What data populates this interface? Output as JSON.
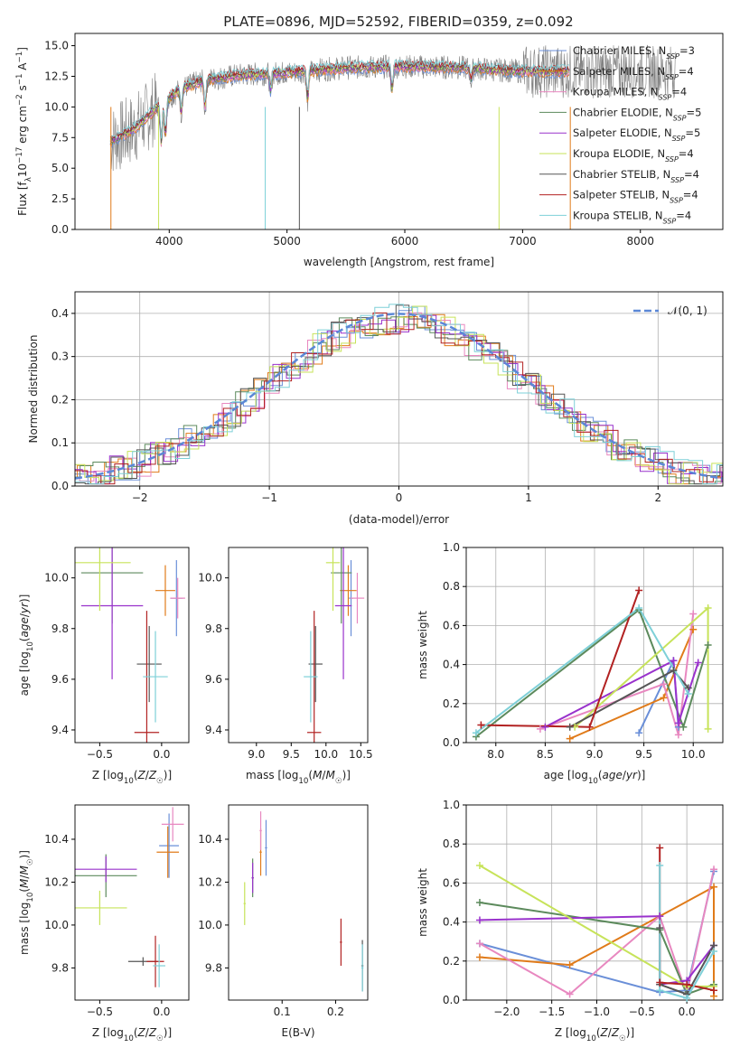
{
  "title": "PLATE=0896, MJD=52592, FIBERID=0359, z=0.092",
  "colors": {
    "chabrier_miles": "#6a8fd8",
    "salpeter_miles": "#e07b1a",
    "kroupa_miles": "#e888c0",
    "chabrier_elodie": "#5c8a5c",
    "salpeter_elodie": "#9932cc",
    "kroupa_elodie": "#c7e35a",
    "chabrier_stelib": "#555555",
    "salpeter_stelib": "#b22222",
    "kroupa_stelib": "#7ed0d8",
    "data": "#808080"
  },
  "legend": [
    {
      "key": "chabrier_miles",
      "base": "Chabrier MILES, N",
      "sub": "SSP",
      "suffix": "=3"
    },
    {
      "key": "salpeter_miles",
      "base": "Salpeter MILES, N",
      "sub": "SSP",
      "suffix": "=4"
    },
    {
      "key": "kroupa_miles",
      "base": "Kroupa MILES, N",
      "sub": "SSP",
      "suffix": "=4"
    },
    {
      "key": "chabrier_elodie",
      "base": "Chabrier ELODIE, N",
      "sub": "SSP",
      "suffix": "=5"
    },
    {
      "key": "salpeter_elodie",
      "base": "Salpeter ELODIE, N",
      "sub": "SSP",
      "suffix": "=5"
    },
    {
      "key": "kroupa_elodie",
      "base": "Kroupa ELODIE, N",
      "sub": "SSP",
      "suffix": "=4"
    },
    {
      "key": "chabrier_stelib",
      "base": "Chabrier STELIB, N",
      "sub": "SSP",
      "suffix": "=4"
    },
    {
      "key": "salpeter_stelib",
      "base": "Salpeter STELIB, N",
      "sub": "SSP",
      "suffix": "=4"
    },
    {
      "key": "kroupa_stelib",
      "base": "Kroupa STELIB, N",
      "sub": "SSP",
      "suffix": "=4"
    }
  ],
  "chart_data": [
    {
      "id": "spectrum",
      "type": "line",
      "xlabel": "wavelength [Angstrom, rest frame]",
      "ylabel": "Flux [f_λ 10^-17 erg cm^-2 s^-1 A^-1]",
      "xlim": [
        3200,
        8700
      ],
      "ylim": [
        0,
        16
      ],
      "xticks": [
        4000,
        5000,
        6000,
        7000,
        8000
      ],
      "yticks": [
        0.0,
        2.5,
        5.0,
        7.5,
        10.0,
        12.5,
        15.0
      ],
      "continuum": {
        "x": [
          3500,
          3700,
          3900,
          4100,
          4300,
          4600,
          5000,
          5500,
          6000,
          6500,
          7000,
          7400
        ],
        "y": [
          7.2,
          8.2,
          10.0,
          11.5,
          12.2,
          12.6,
          12.8,
          13.2,
          13.3,
          13.2,
          12.9,
          12.9
        ]
      },
      "absorption_lines": [
        {
          "x": 3933,
          "depth": 3.5
        },
        {
          "x": 3968,
          "depth": 3.0
        },
        {
          "x": 4102,
          "depth": 2.0
        },
        {
          "x": 4304,
          "depth": 2.5
        },
        {
          "x": 4861,
          "depth": 1.5
        },
        {
          "x": 5175,
          "depth": 2.5
        },
        {
          "x": 5892,
          "depth": 2.0
        },
        {
          "x": 6563,
          "depth": 1.0
        }
      ],
      "data_span": [
        3500,
        8300
      ],
      "model_span": [
        3500,
        7400
      ],
      "grid": false,
      "legend": "top-right"
    },
    {
      "id": "residuals",
      "type": "line",
      "xlabel": "(data-model)/error",
      "ylabel": "Normed distribution",
      "xlim": [
        -2.5,
        2.5
      ],
      "ylim": [
        0,
        0.45
      ],
      "xticks": [
        -2,
        -1,
        0,
        1,
        2
      ],
      "yticks": [
        0.0,
        0.1,
        0.2,
        0.3,
        0.4
      ],
      "reference": {
        "name": "N(0,1)",
        "mean": 0,
        "sigma": 1
      },
      "grid": true,
      "legend": "top-right"
    },
    {
      "id": "age_vs_Z",
      "type": "scatter",
      "xlabel": "Z [log10(Z/Z☉)]",
      "ylabel": "age  [log10(age/yr)]",
      "xlim": [
        -0.7,
        0.22
      ],
      "ylim": [
        9.35,
        10.12
      ],
      "xticks": [
        -0.5,
        0.0
      ],
      "yticks": [
        9.4,
        9.6,
        9.8,
        10.0
      ],
      "points": [
        {
          "key": "chabrier_miles",
          "x": 0.12,
          "y": 9.92,
          "xerr": 0.05,
          "yerr": 0.15
        },
        {
          "key": "salpeter_miles",
          "x": 0.03,
          "y": 9.95,
          "xerr": 0.08,
          "yerr": 0.1
        },
        {
          "key": "kroupa_miles",
          "x": 0.13,
          "y": 9.92,
          "xerr": 0.06,
          "yerr": 0.08
        },
        {
          "key": "chabrier_elodie",
          "x": -0.4,
          "y": 10.02,
          "xerr": 0.25,
          "yerr": 0.2
        },
        {
          "key": "salpeter_elodie",
          "x": -0.4,
          "y": 9.89,
          "xerr": 0.25,
          "yerr": 0.29
        },
        {
          "key": "kroupa_elodie",
          "x": -0.5,
          "y": 10.06,
          "xerr": 0.25,
          "yerr": 0.19
        },
        {
          "key": "chabrier_stelib",
          "x": -0.1,
          "y": 9.66,
          "xerr": 0.1,
          "yerr": 0.15
        },
        {
          "key": "salpeter_stelib",
          "x": -0.12,
          "y": 9.39,
          "xerr": 0.1,
          "yerr": 0.48
        },
        {
          "key": "kroupa_stelib",
          "x": -0.05,
          "y": 9.61,
          "xerr": 0.1,
          "yerr": 0.18
        }
      ]
    },
    {
      "id": "age_vs_mass",
      "type": "scatter",
      "xlabel": "mass [log10(M/M☉)]",
      "ylabel": "",
      "xlim": [
        8.6,
        10.6
      ],
      "ylim": [
        9.35,
        10.12
      ],
      "xticks": [
        9.0,
        9.5,
        10.0,
        10.5
      ],
      "yticks": [
        9.4,
        9.6,
        9.8,
        10.0
      ],
      "points": [
        {
          "key": "chabrier_miles",
          "x": 10.36,
          "y": 9.92,
          "xerr": 0.03,
          "yerr": 0.15
        },
        {
          "key": "salpeter_miles",
          "x": 10.32,
          "y": 9.95,
          "xerr": 0.12,
          "yerr": 0.1
        },
        {
          "key": "kroupa_miles",
          "x": 10.45,
          "y": 9.92,
          "xerr": 0.1,
          "yerr": 0.1
        },
        {
          "key": "chabrier_elodie",
          "x": 10.22,
          "y": 10.02,
          "xerr": 0.15,
          "yerr": 0.2
        },
        {
          "key": "salpeter_elodie",
          "x": 10.25,
          "y": 9.89,
          "xerr": 0.12,
          "yerr": 0.29
        },
        {
          "key": "kroupa_elodie",
          "x": 10.1,
          "y": 10.06,
          "xerr": 0.1,
          "yerr": 0.19
        },
        {
          "key": "chabrier_stelib",
          "x": 9.85,
          "y": 9.66,
          "xerr": 0.1,
          "yerr": 0.15
        },
        {
          "key": "salpeter_stelib",
          "x": 9.83,
          "y": 9.39,
          "xerr": 0.1,
          "yerr": 0.48
        },
        {
          "key": "kroupa_stelib",
          "x": 9.78,
          "y": 9.61,
          "xerr": 0.1,
          "yerr": 0.18
        }
      ]
    },
    {
      "id": "weights_vs_age",
      "type": "line",
      "xlabel": "age  [log10(age/yr)]",
      "ylabel": "mass weight",
      "xlim": [
        7.7,
        10.3
      ],
      "ylim": [
        0,
        1.0
      ],
      "xticks": [
        8.0,
        8.5,
        9.0,
        9.5,
        10.0
      ],
      "yticks": [
        0.0,
        0.2,
        0.4,
        0.6,
        0.8,
        1.0
      ],
      "grid": true,
      "series": [
        {
          "key": "chabrier_miles",
          "x": [
            9.45,
            9.8,
            9.85
          ],
          "y": [
            0.05,
            0.42,
            0.08
          ]
        },
        {
          "key": "salpeter_miles",
          "x": [
            8.75,
            9.7,
            10.0
          ],
          "y": [
            0.02,
            0.23,
            0.58
          ]
        },
        {
          "key": "kroupa_miles",
          "x": [
            8.45,
            9.7,
            9.85,
            10.0
          ],
          "y": [
            0.07,
            0.3,
            0.04,
            0.66
          ]
        },
        {
          "key": "chabrier_elodie",
          "x": [
            7.8,
            9.45,
            9.9,
            10.15
          ],
          "y": [
            0.03,
            0.68,
            0.08,
            0.5
          ]
        },
        {
          "key": "salpeter_elodie",
          "x": [
            8.5,
            9.8,
            9.85,
            10.05
          ],
          "y": [
            0.08,
            0.42,
            0.1,
            0.41
          ]
        },
        {
          "key": "kroupa_elodie",
          "x": [
            8.8,
            10.15,
            10.15
          ],
          "y": [
            0.08,
            0.69,
            0.07
          ]
        },
        {
          "key": "chabrier_stelib",
          "x": [
            8.75,
            9.8,
            9.95
          ],
          "y": [
            0.08,
            0.37,
            0.28
          ]
        },
        {
          "key": "salpeter_stelib",
          "x": [
            7.85,
            8.95,
            9.45
          ],
          "y": [
            0.09,
            0.08,
            0.78
          ]
        },
        {
          "key": "kroupa_stelib",
          "x": [
            7.8,
            9.45,
            9.95
          ],
          "y": [
            0.05,
            0.69,
            0.25
          ]
        }
      ]
    },
    {
      "id": "mass_vs_Z",
      "type": "scatter",
      "xlabel": "Z [log10(Z/Z☉)]",
      "ylabel": "mass [log10(M/M☉)]",
      "xlim": [
        -0.7,
        0.22
      ],
      "ylim": [
        9.65,
        10.56
      ],
      "xticks": [
        -0.5,
        0.0
      ],
      "yticks": [
        9.8,
        10.0,
        10.2,
        10.4
      ],
      "points": [
        {
          "key": "chabrier_miles",
          "x": 0.06,
          "y": 10.37,
          "xerr": 0.08,
          "yerr": 0.15
        },
        {
          "key": "salpeter_miles",
          "x": 0.05,
          "y": 10.34,
          "xerr": 0.09,
          "yerr": 0.12
        },
        {
          "key": "kroupa_miles",
          "x": 0.09,
          "y": 10.47,
          "xerr": 0.09,
          "yerr": 0.08
        },
        {
          "key": "chabrier_elodie",
          "x": -0.45,
          "y": 10.23,
          "xerr": 0.25,
          "yerr": 0.1
        },
        {
          "key": "salpeter_elodie",
          "x": -0.45,
          "y": 10.26,
          "xerr": 0.25,
          "yerr": 0.06
        },
        {
          "key": "kroupa_elodie",
          "x": -0.5,
          "y": 10.08,
          "xerr": 0.22,
          "yerr": 0.08
        },
        {
          "key": "chabrier_stelib",
          "x": -0.15,
          "y": 9.83,
          "xerr": 0.12,
          "yerr": 0.02
        },
        {
          "key": "salpeter_stelib",
          "x": -0.05,
          "y": 9.83,
          "xerr": 0.07,
          "yerr": 0.12
        },
        {
          "key": "kroupa_stelib",
          "x": -0.02,
          "y": 9.81,
          "xerr": 0.05,
          "yerr": 0.1
        }
      ]
    },
    {
      "id": "mass_vs_ebv",
      "type": "scatter",
      "xlabel": "E(B-V)",
      "ylabel": "",
      "xlim": [
        0.0,
        0.26
      ],
      "ylim": [
        9.65,
        10.56
      ],
      "xticks": [
        0.1,
        0.2
      ],
      "yticks": [
        9.8,
        10.0,
        10.2,
        10.4
      ],
      "points": [
        {
          "key": "chabrier_miles",
          "x": 0.07,
          "y": 10.36,
          "xerr": 0.002,
          "yerr": 0.13
        },
        {
          "key": "salpeter_miles",
          "x": 0.06,
          "y": 10.34,
          "xerr": 0.002,
          "yerr": 0.11
        },
        {
          "key": "kroupa_miles",
          "x": 0.06,
          "y": 10.44,
          "xerr": 0.002,
          "yerr": 0.09
        },
        {
          "key": "chabrier_elodie",
          "x": 0.045,
          "y": 10.22,
          "xerr": 0.002,
          "yerr": 0.09
        },
        {
          "key": "salpeter_elodie",
          "x": 0.045,
          "y": 10.22,
          "xerr": 0.002,
          "yerr": 0.07
        },
        {
          "key": "kroupa_elodie",
          "x": 0.03,
          "y": 10.1,
          "xerr": 0.002,
          "yerr": 0.1
        },
        {
          "key": "chabrier_stelib",
          "x": 0.25,
          "y": 9.81,
          "xerr": 0.002,
          "yerr": 0.12
        },
        {
          "key": "salpeter_stelib",
          "x": 0.21,
          "y": 9.92,
          "xerr": 0.002,
          "yerr": 0.11
        },
        {
          "key": "kroupa_stelib",
          "x": 0.25,
          "y": 9.8,
          "xerr": 0.002,
          "yerr": 0.11
        }
      ]
    },
    {
      "id": "weights_vs_Z",
      "type": "line",
      "xlabel": "Z [log10(Z/Z☉)]",
      "ylabel": "mass weight",
      "xlim": [
        -2.45,
        0.4
      ],
      "ylim": [
        0,
        1.0
      ],
      "xticks": [
        -2.0,
        -1.5,
        -1.0,
        -0.5,
        0.0
      ],
      "yticks": [
        0.0,
        0.2,
        0.4,
        0.6,
        0.8,
        1.0
      ],
      "grid": true,
      "series": [
        {
          "key": "chabrier_miles",
          "x": [
            -2.3,
            -0.3,
            0.0,
            0.3
          ],
          "y": [
            0.29,
            0.04,
            0.05,
            0.66
          ]
        },
        {
          "key": "salpeter_miles",
          "x": [
            -2.3,
            -1.3,
            -0.3,
            0.3,
            0.3
          ],
          "y": [
            0.22,
            0.18,
            0.43,
            0.58,
            0.02
          ]
        },
        {
          "key": "kroupa_miles",
          "x": [
            -2.3,
            -1.3,
            -0.3,
            0.0,
            0.3
          ],
          "y": [
            0.29,
            0.03,
            0.43,
            0.03,
            0.67
          ]
        },
        {
          "key": "chabrier_elodie",
          "x": [
            -2.3,
            -0.3,
            0.0,
            0.3
          ],
          "y": [
            0.5,
            0.36,
            0.03,
            0.08
          ]
        },
        {
          "key": "salpeter_elodie",
          "x": [
            -2.3,
            -0.3,
            -0.3,
            0.0,
            0.3
          ],
          "y": [
            0.41,
            0.43,
            0.08,
            0.1,
            0.28
          ]
        },
        {
          "key": "kroupa_elodie",
          "x": [
            -2.3,
            0.0,
            0.3
          ],
          "y": [
            0.69,
            0.07,
            0.07
          ]
        },
        {
          "key": "chabrier_stelib",
          "x": [
            -0.3,
            -0.3,
            0.0,
            0.3
          ],
          "y": [
            0.37,
            0.08,
            0.03,
            0.28
          ]
        },
        {
          "key": "salpeter_stelib",
          "x": [
            -0.3,
            -0.3,
            0.0,
            0.3
          ],
          "y": [
            0.78,
            0.09,
            0.08,
            0.05
          ]
        },
        {
          "key": "kroupa_stelib",
          "x": [
            -0.3,
            -0.3,
            0.0,
            0.3
          ],
          "y": [
            0.69,
            0.05,
            0.01,
            0.25
          ]
        }
      ]
    }
  ]
}
